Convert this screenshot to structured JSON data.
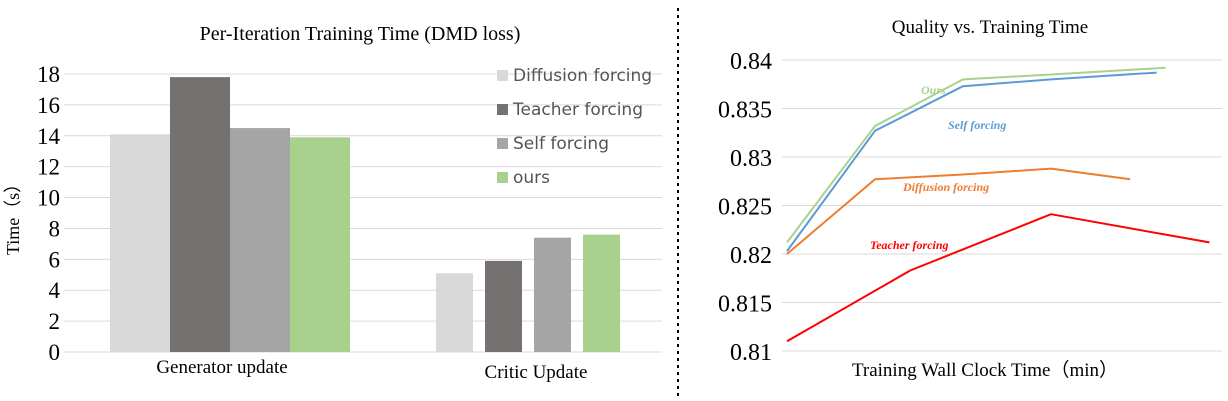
{
  "chart_data": [
    {
      "type": "bar",
      "title": "Per-Iteration Training Time (DMD loss)",
      "ylabel": "Time（s）",
      "xlabel": "",
      "categories": [
        "Generator update",
        "Critic Update"
      ],
      "ylim": [
        0,
        18
      ],
      "yticks": [
        "0",
        "2",
        "4",
        "6",
        "8",
        "10",
        "12",
        "14",
        "16",
        "18"
      ],
      "grid": true,
      "legend_position": "top-right",
      "series": [
        {
          "name": "Diffusion forcing",
          "color": "#d9d9d9",
          "values": [
            14.1,
            5.1
          ]
        },
        {
          "name": "Teacher forcing",
          "color": "#767171",
          "values": [
            17.8,
            5.9
          ]
        },
        {
          "name": "Self forcing",
          "color": "#a5a5a5",
          "values": [
            14.5,
            7.4
          ]
        },
        {
          "name": "ours",
          "color": "#a9d18e",
          "values": [
            13.9,
            7.6
          ]
        }
      ]
    },
    {
      "type": "line",
      "title": "Quality vs. Training Time",
      "xlabel": "Training Wall Clock Time（min）",
      "ylabel": "",
      "ylim": [
        0.81,
        0.84
      ],
      "yticks": [
        "0.81",
        "0.815",
        "0.82",
        "0.825",
        "0.83",
        "0.835",
        "0.84"
      ],
      "grid": true,
      "legend_position": "inline labels",
      "series": [
        {
          "name": "Ours",
          "color": "#a9d18e",
          "x": [
            0,
            1,
            2,
            3,
            4.3
          ],
          "y": [
            0.8212,
            0.8332,
            0.838,
            0.8385,
            0.8392
          ]
        },
        {
          "name": "Self forcing",
          "color": "#5b9bd5",
          "x": [
            0,
            1,
            2,
            3,
            4.2
          ],
          "y": [
            0.8203,
            0.8327,
            0.8373,
            0.838,
            0.8387
          ]
        },
        {
          "name": "Diffusion forcing",
          "color": "#ed7d31",
          "x": [
            0,
            1,
            2,
            3,
            3.9
          ],
          "y": [
            0.82,
            0.8277,
            0.8282,
            0.8288,
            0.8277
          ]
        },
        {
          "name": "Teacher forcing",
          "color": "#ff0000",
          "x": [
            0,
            1.4,
            3,
            4.8
          ],
          "y": [
            0.811,
            0.8183,
            0.8241,
            0.8212
          ]
        }
      ]
    }
  ]
}
